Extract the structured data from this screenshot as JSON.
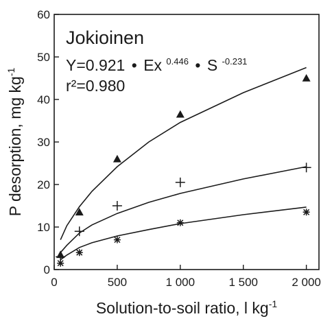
{
  "chart_data": {
    "type": "scatter",
    "title": "",
    "xlabel": "Solution-to-soil ratio, l kg",
    "xlabel_sup": "-1",
    "ylabel": "P desorption, mg kg",
    "ylabel_sup": "-1",
    "xlim": [
      0,
      2100
    ],
    "ylim": [
      0,
      60
    ],
    "x_ticks": [
      0,
      500,
      1000,
      1500,
      2000
    ],
    "x_tick_labels": [
      "0",
      "500",
      "1 000",
      "1 500",
      "2 000"
    ],
    "y_ticks": [
      0,
      10,
      20,
      30,
      40,
      50,
      60
    ],
    "y_tick_labels": [
      "0",
      "10",
      "20",
      "30",
      "40",
      "50",
      "60"
    ],
    "grid": false,
    "annotation": {
      "site": "Jokioinen",
      "eq_a": "Y=0.921",
      "eq_b": "Ex",
      "eq_b_sup": "0.446",
      "eq_c": "S",
      "eq_c_sup": "-0.231",
      "r2": "r²=0.980",
      "dot": "•"
    },
    "series": [
      {
        "marker": "triangle",
        "points": [
          [
            50,
            3.5
          ],
          [
            200,
            13.5
          ],
          [
            500,
            26
          ],
          [
            1000,
            36.5
          ],
          [
            2000,
            45
          ]
        ],
        "fit": [
          [
            50,
            7.0
          ],
          [
            100,
            10.3
          ],
          [
            200,
            14.8
          ],
          [
            300,
            18.4
          ],
          [
            500,
            24.2
          ],
          [
            750,
            30.0
          ],
          [
            1000,
            34.6
          ],
          [
            1500,
            41.6
          ],
          [
            2000,
            47.5
          ]
        ]
      },
      {
        "marker": "plus",
        "points": [
          [
            50,
            3
          ],
          [
            200,
            9
          ],
          [
            500,
            15
          ],
          [
            1000,
            20.5
          ],
          [
            2000,
            24
          ]
        ],
        "fit": [
          [
            50,
            4.0
          ],
          [
            100,
            5.7
          ],
          [
            200,
            8.6
          ],
          [
            300,
            10.5
          ],
          [
            500,
            13.2
          ],
          [
            750,
            15.8
          ],
          [
            1000,
            17.9
          ],
          [
            1500,
            21.3
          ],
          [
            2000,
            24.2
          ]
        ]
      },
      {
        "marker": "star",
        "points": [
          [
            50,
            1.5
          ],
          [
            200,
            4
          ],
          [
            500,
            7
          ],
          [
            1000,
            11
          ],
          [
            2000,
            13.5
          ]
        ],
        "fit": [
          [
            50,
            2.3
          ],
          [
            100,
            3.4
          ],
          [
            200,
            5.2
          ],
          [
            300,
            6.3
          ],
          [
            500,
            7.9
          ],
          [
            750,
            9.4
          ],
          [
            1000,
            10.8
          ],
          [
            1500,
            12.9
          ],
          [
            2000,
            14.7
          ]
        ]
      }
    ]
  }
}
